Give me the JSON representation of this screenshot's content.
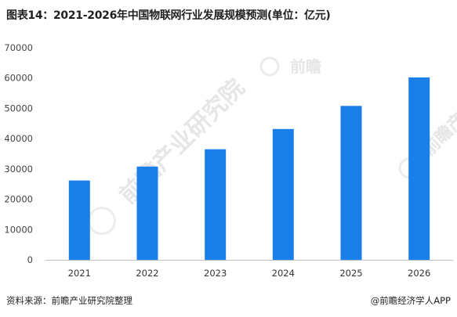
{
  "title": "图表14：2021-2026年中国物联网行业发展规模预测(单位：亿元)",
  "footer": {
    "source": "资料来源：前瞻产业研究院整理",
    "credit": "@前瞻经济学人APP"
  },
  "watermark": {
    "brand": "前瞻产业研究院",
    "short": "前瞻"
  },
  "colors": {
    "bar": "#1a7fe8",
    "axis": "#bfbfbf"
  },
  "chart_data": {
    "type": "bar",
    "title": "图表14：2021-2026年中国物联网行业发展规模预测(单位：亿元)",
    "xlabel": "",
    "ylabel": "",
    "categories": [
      "2021",
      "2022",
      "2023",
      "2024",
      "2025",
      "2026"
    ],
    "values": [
      26200,
      30800,
      36500,
      43200,
      50800,
      60200
    ],
    "ylim": [
      0,
      70000
    ],
    "yticks": [
      0,
      10000,
      20000,
      30000,
      40000,
      50000,
      60000,
      70000
    ],
    "grid": false,
    "legend": "none"
  }
}
